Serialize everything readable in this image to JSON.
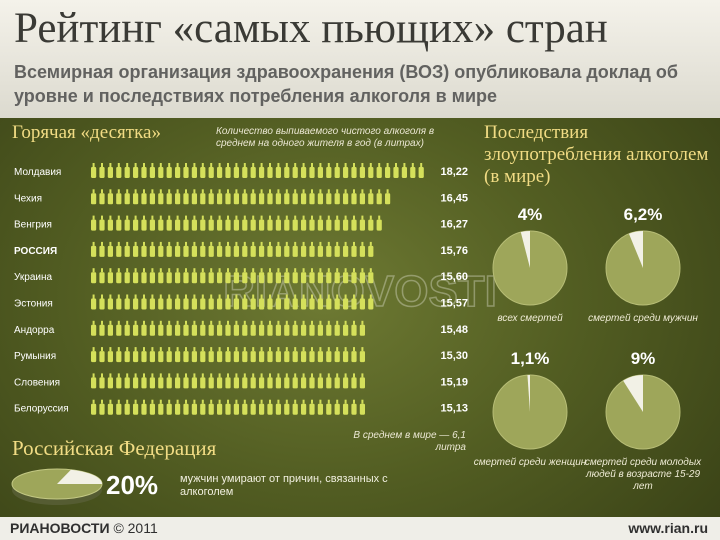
{
  "header": {
    "title": "Рейтинг «самых пьющих» стран",
    "subtitle": "Всемирная организация здравоохранения (ВОЗ) опубликовала доклад об уровне и последствиях потребления алкоголя в мире"
  },
  "top_ten": {
    "heading": "Горячая «десятка»",
    "note": "Количество выпиваемого чистого алкоголя в среднем на одного жителя в год (в литрах)",
    "world_average": "В среднем в мире — 6,1 литра"
  },
  "consequences": {
    "heading": "Последствия злоупотребления алкоголем (в мире)"
  },
  "russia": {
    "heading": "Российская Федерация",
    "value_label": "20%",
    "text": "мужчин умирают от причин, связанных с алкоголем"
  },
  "watermark": "RIANOVOSTI",
  "footer": {
    "logo": "РИАНОВОСТИ",
    "copyright": "© 2011",
    "url": "www.rian.ru"
  },
  "colors": {
    "accent": "#f1dc84",
    "bottle": "#d5e05b",
    "pie": "#9ea65a",
    "slice": "#f2f1e6"
  },
  "chart_data": [
    {
      "type": "bar",
      "categories": [
        "Молдавия",
        "Чехия",
        "Венгрия",
        "РОССИЯ",
        "Украина",
        "Эстония",
        "Андорра",
        "Румыния",
        "Словения",
        "Белоруссия"
      ],
      "values": [
        18.22,
        16.45,
        16.27,
        15.76,
        15.6,
        15.57,
        15.48,
        15.3,
        15.19,
        15.13
      ],
      "value_labels": [
        "18,22",
        "16,45",
        "16,27",
        "15,76",
        "15,60",
        "15,57",
        "15,48",
        "15,30",
        "15,19",
        "15,13"
      ],
      "xlabel": "",
      "ylabel": ""
    },
    {
      "type": "pie",
      "slices": [
        {
          "label": "4%",
          "value": 4,
          "caption": "всех смертей"
        },
        {
          "label": "6,2%",
          "value": 6.2,
          "caption": "смертей среди мужчин"
        },
        {
          "label": "1,1%",
          "value": 1.1,
          "caption": "смертей среди женщин"
        },
        {
          "label": "9%",
          "value": 9,
          "caption": "смертей среди молодых людей в возрасте 15-29 лет"
        }
      ]
    },
    {
      "type": "pie",
      "slices": [
        {
          "label": "20%",
          "value": 20
        }
      ]
    }
  ]
}
